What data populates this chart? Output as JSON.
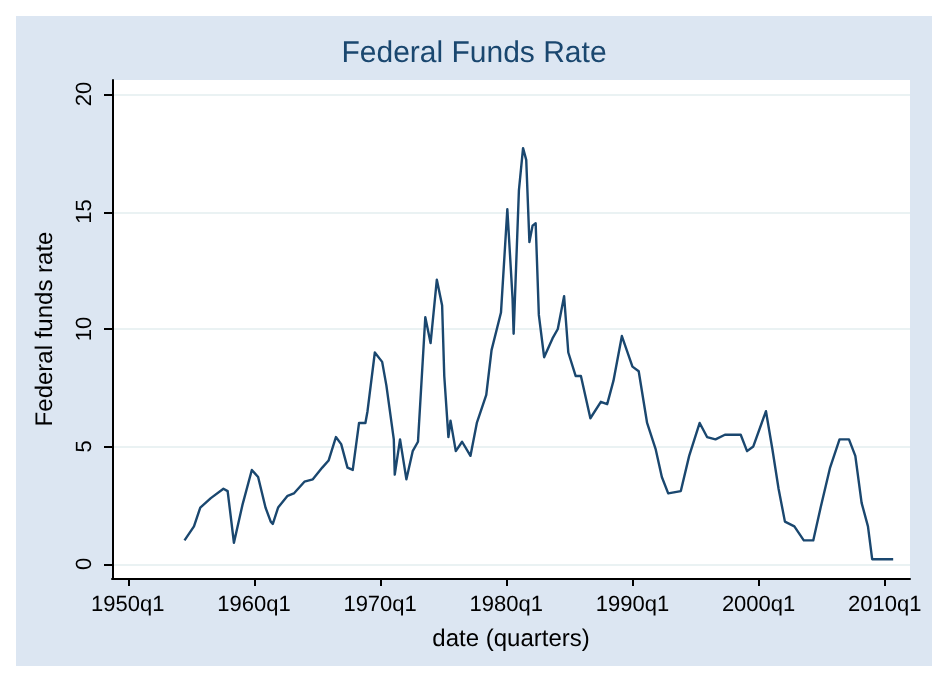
{
  "chart_data": {
    "type": "line",
    "title": "Federal Funds Rate",
    "xlabel": "date (quarters)",
    "ylabel": "Federal funds rate",
    "x": [
      "1954-07",
      "1955-04",
      "1955-10",
      "1956-08",
      "1957-08",
      "1957-12",
      "1958-06",
      "1959-02",
      "1959-11",
      "1960-05",
      "1960-12",
      "1961-05",
      "1961-07",
      "1961-12",
      "1962-09",
      "1963-03",
      "1964-01",
      "1964-09",
      "1965-06",
      "1965-12",
      "1966-07",
      "1966-12",
      "1967-06",
      "1967-11",
      "1968-05",
      "1968-11",
      "1969-01",
      "1969-08",
      "1970-03",
      "1970-07",
      "1971-02",
      "1971-03",
      "1971-08",
      "1972-02",
      "1972-08",
      "1973-01",
      "1973-08",
      "1974-01",
      "1974-07",
      "1974-12",
      "1975-02",
      "1975-06",
      "1975-08",
      "1976-01",
      "1976-07",
      "1977-03",
      "1977-09",
      "1978-06",
      "1978-11",
      "1979-08",
      "1980-02",
      "1980-07",
      "1980-08",
      "1981-01",
      "1981-05",
      "1981-08",
      "1981-11",
      "1982-02",
      "1982-05",
      "1982-08",
      "1983-01",
      "1983-09",
      "1984-02",
      "1984-08",
      "1984-12",
      "1985-07",
      "1985-12",
      "1986-09",
      "1987-07",
      "1988-01",
      "1988-07",
      "1989-03",
      "1990-01",
      "1990-07",
      "1991-03",
      "1991-11",
      "1992-05",
      "1992-11",
      "1993-11",
      "1994-07",
      "1995-05",
      "1995-12",
      "1996-08",
      "1997-05",
      "1998-08",
      "1999-02",
      "1999-08",
      "2000-08",
      "2001-02",
      "2001-08",
      "2002-02",
      "2002-11",
      "2003-08",
      "2004-05",
      "2004-12",
      "2005-09",
      "2006-06",
      "2007-03",
      "2007-09",
      "2008-03",
      "2008-09",
      "2009-01",
      "2009-12",
      "2010-09"
    ],
    "series": [
      {
        "color": "#1a476f",
        "values": [
          1.0,
          1.6,
          2.4,
          2.8,
          3.2,
          3.1,
          0.9,
          2.5,
          4.0,
          3.7,
          2.4,
          1.8,
          1.7,
          2.4,
          2.9,
          3.0,
          3.5,
          3.6,
          4.1,
          4.4,
          5.4,
          5.1,
          4.1,
          4.0,
          6.0,
          6.0,
          6.5,
          9.0,
          8.6,
          7.6,
          5.3,
          3.8,
          5.3,
          3.6,
          4.8,
          5.2,
          10.5,
          9.4,
          12.1,
          11.0,
          8.0,
          5.4,
          6.1,
          4.8,
          5.2,
          4.6,
          6.0,
          7.2,
          9.1,
          10.7,
          15.1,
          11.3,
          9.8,
          15.9,
          17.7,
          17.2,
          13.7,
          14.4,
          14.5,
          10.6,
          8.8,
          9.6,
          10.0,
          11.4,
          9.0,
          8.0,
          8.0,
          6.2,
          6.9,
          6.8,
          7.8,
          9.7,
          8.4,
          8.2,
          6.0,
          4.9,
          3.7,
          3.0,
          3.1,
          4.6,
          6.0,
          5.4,
          5.3,
          5.5,
          5.5,
          4.8,
          5.0,
          6.5,
          4.9,
          3.2,
          1.8,
          1.6,
          1.0,
          1.0,
          2.4,
          4.1,
          5.3,
          5.3,
          4.6,
          2.6,
          1.6,
          0.2,
          0.2,
          0.2
        ]
      }
    ],
    "xlim": [
      "1948-10",
      "2012-01"
    ],
    "xticks": [
      {
        "value": "1950-01",
        "label": "1950q1"
      },
      {
        "value": "1960-01",
        "label": "1960q1"
      },
      {
        "value": "1970-01",
        "label": "1970q1"
      },
      {
        "value": "1980-01",
        "label": "1980q1"
      },
      {
        "value": "1990-01",
        "label": "1990q1"
      },
      {
        "value": "2000-01",
        "label": "2000q1"
      },
      {
        "value": "2010-01",
        "label": "2010q1"
      }
    ],
    "ylim": [
      -0.6,
      20.6
    ],
    "yticks": [
      0,
      5,
      10,
      15,
      20
    ],
    "grid": "y",
    "marker": "none",
    "line_style": "solid"
  }
}
